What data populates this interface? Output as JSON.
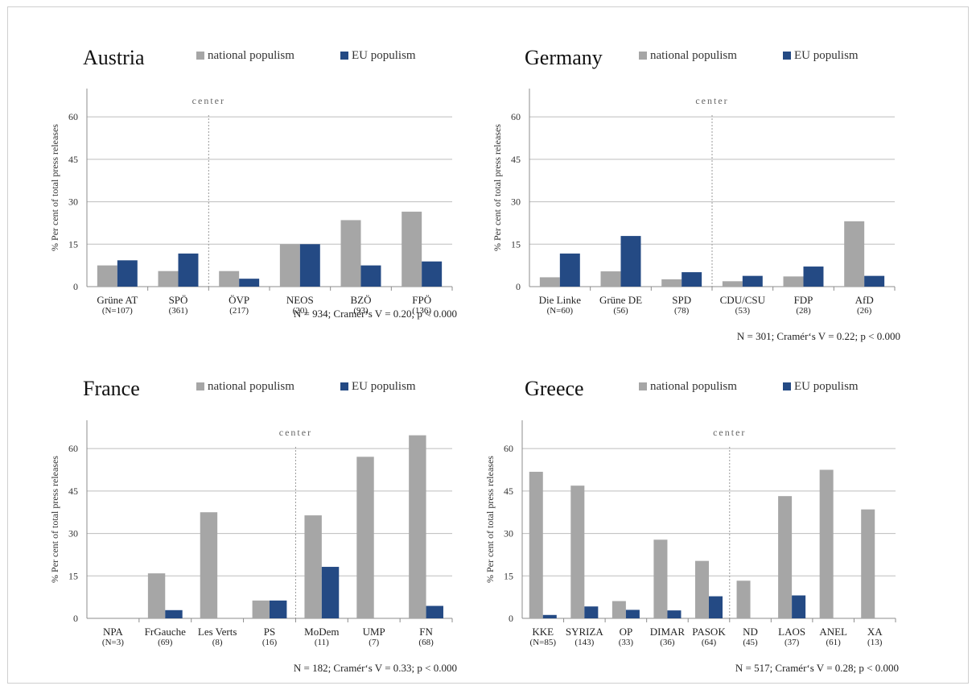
{
  "colors": {
    "national": "#a6a6a6",
    "eu": "#244a84",
    "grid": "#bdbdbd",
    "axis": "#8c8c8c",
    "center_line": "#9a9a9a"
  },
  "legend": {
    "national_label": "national populism",
    "eu_label": "EU populism"
  },
  "center_label": "center",
  "ylabel": "% Per cent of total press releases",
  "chart_data": [
    {
      "type": "bar",
      "title": "Austria",
      "ylim": [
        0,
        70
      ],
      "yticks": [
        0,
        15,
        30,
        45,
        60
      ],
      "grid": true,
      "legend_position": "top",
      "categories": [
        "Grüne AT",
        "SPÖ",
        "ÖVP",
        "NEOS",
        "BZÖ",
        "FPÖ"
      ],
      "counts": [
        "(N=107)",
        "(361)",
        "(217)",
        "(20)",
        "(93)",
        "(136)"
      ],
      "center_after_index": 1,
      "series": [
        {
          "name": "national populism",
          "values": [
            7.5,
            5.5,
            5.5,
            15,
            23.5,
            26.5
          ]
        },
        {
          "name": "EU populism",
          "values": [
            9.3,
            11.7,
            2.8,
            15,
            7.5,
            8.9
          ]
        }
      ],
      "note": "N = 934; Cramér‘s V = 0.20; p < 0.000"
    },
    {
      "type": "bar",
      "title": "Germany",
      "ylim": [
        0,
        70
      ],
      "yticks": [
        0,
        15,
        30,
        45,
        60
      ],
      "grid": true,
      "legend_position": "top",
      "categories": [
        "Die Linke",
        "Grüne DE",
        "SPD",
        "CDU/CSU",
        "FDP",
        "AfD"
      ],
      "counts": [
        "(N=60)",
        "(56)",
        "(78)",
        "(53)",
        "(28)",
        "(26)"
      ],
      "center_after_index": 2,
      "series": [
        {
          "name": "national populism",
          "values": [
            3.3,
            5.4,
            2.6,
            1.9,
            3.6,
            23.1
          ]
        },
        {
          "name": "EU populism",
          "values": [
            11.7,
            17.9,
            5.1,
            3.8,
            7.1,
            3.8
          ]
        }
      ],
      "note": "N = 301; Cramér‘s V = 0.22; p < 0.000"
    },
    {
      "type": "bar",
      "title": "France",
      "ylim": [
        0,
        70
      ],
      "yticks": [
        0,
        15,
        30,
        45,
        60
      ],
      "grid": true,
      "legend_position": "top",
      "categories": [
        "NPA",
        "FrGauche",
        "Les Verts",
        "PS",
        "MoDem",
        "UMP",
        "FN"
      ],
      "counts": [
        "(N=3)",
        "(69)",
        "(8)",
        "(16)",
        "(11)",
        "(7)",
        "(68)"
      ],
      "center_after_index": 3,
      "series": [
        {
          "name": "national populism",
          "values": [
            0,
            15.9,
            37.5,
            6.3,
            36.4,
            57.1,
            64.7
          ]
        },
        {
          "name": "EU populism",
          "values": [
            0,
            2.9,
            0,
            6.3,
            18.2,
            0,
            4.4
          ]
        }
      ],
      "note": "N = 182; Cramér‘s V = 0.33; p < 0.000"
    },
    {
      "type": "bar",
      "title": "Greece",
      "ylim": [
        0,
        70
      ],
      "yticks": [
        0,
        15,
        30,
        45,
        60
      ],
      "grid": true,
      "legend_position": "top",
      "categories": [
        "KKE",
        "SYRIZA",
        "OP",
        "DIMAR",
        "PASOK",
        "ND",
        "LAOS",
        "ANEL",
        "XA"
      ],
      "counts": [
        "(N=85)",
        "(143)",
        "(33)",
        "(36)",
        "(64)",
        "(45)",
        "(37)",
        "(61)",
        "(13)"
      ],
      "center_after_index": 4,
      "series": [
        {
          "name": "national populism",
          "values": [
            51.8,
            46.9,
            6.1,
            27.8,
            20.3,
            13.3,
            43.2,
            52.5,
            38.5
          ]
        },
        {
          "name": "EU populism",
          "values": [
            1.2,
            4.2,
            3.0,
            2.8,
            7.8,
            0,
            8.1,
            0,
            0
          ]
        }
      ],
      "note": "N = 517; Cramér‘s V = 0.28; p < 0.000"
    }
  ]
}
